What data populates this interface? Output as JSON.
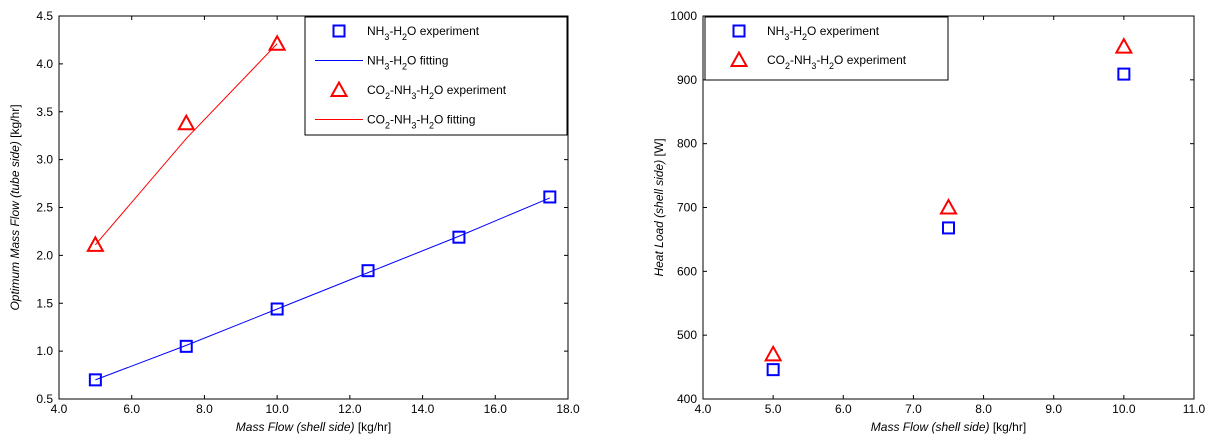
{
  "chart_data": [
    {
      "type": "scatter",
      "xlabel": {
        "main": "Mass Flow (shell side)",
        "unit": "[kg/hr]"
      },
      "ylabel": {
        "main": "Optimum Mass Flow (tube side)",
        "unit": "[kg/hr]"
      },
      "xlim": [
        4.0,
        18.0
      ],
      "ylim": [
        0.5,
        4.5
      ],
      "xticks": [
        "4.0",
        "6.0",
        "8.0",
        "10.0",
        "12.0",
        "14.0",
        "16.0",
        "18.0"
      ],
      "yticks": [
        "0.5",
        "1.0",
        "1.5",
        "2.0",
        "2.5",
        "3.0",
        "3.5",
        "4.0",
        "4.5"
      ],
      "grid": false,
      "legend_position": "top-right",
      "series": [
        {
          "name": "NH3-H2O experiment",
          "kind": "marker",
          "marker": "square",
          "color": "#0000ff",
          "x": [
            5.0,
            7.5,
            10.0,
            12.5,
            15.0,
            17.5
          ],
          "y": [
            0.7,
            1.05,
            1.44,
            1.84,
            2.19,
            2.61
          ]
        },
        {
          "name": "NH3-H2O fitting",
          "kind": "line",
          "color": "#0000ff",
          "x": [
            5.0,
            7.5,
            10.0,
            12.5,
            15.0,
            17.5
          ],
          "y": [
            0.7,
            1.06,
            1.44,
            1.82,
            2.2,
            2.6
          ]
        },
        {
          "name": "CO2-NH3-H2O experiment",
          "kind": "marker",
          "marker": "triangle",
          "color": "#ff0000",
          "x": [
            5.0,
            7.5,
            10.0
          ],
          "y": [
            2.11,
            3.38,
            4.21
          ]
        },
        {
          "name": "CO2-NH3-H2O fitting",
          "kind": "line",
          "color": "#ff0000",
          "x": [
            5.0,
            7.5,
            10.0
          ],
          "y": [
            2.11,
            3.22,
            4.21
          ]
        }
      ]
    },
    {
      "type": "scatter",
      "xlabel": {
        "main": "Mass Flow (shell side)",
        "unit": "[kg/hr]"
      },
      "ylabel": {
        "main": "Heat Load (shell side)",
        "unit": "[W]"
      },
      "xlim": [
        4.0,
        11.0
      ],
      "ylim": [
        400,
        1000
      ],
      "xticks": [
        "4.0",
        "5.0",
        "6.0",
        "7.0",
        "8.0",
        "9.0",
        "10.0",
        "11.0"
      ],
      "yticks": [
        "400",
        "500",
        "600",
        "700",
        "800",
        "900",
        "1000"
      ],
      "grid": false,
      "legend_position": "top-left",
      "series": [
        {
          "name": "NH3-H2O experiment",
          "kind": "marker",
          "marker": "square",
          "color": "#0000ff",
          "x": [
            5.0,
            7.5,
            10.0
          ],
          "y": [
            446,
            668,
            909
          ]
        },
        {
          "name": "CO2-NH3-H2O experiment",
          "kind": "marker",
          "marker": "triangle",
          "color": "#ff0000",
          "x": [
            5.0,
            7.5,
            10.0
          ],
          "y": [
            470,
            700,
            952
          ]
        }
      ]
    }
  ]
}
